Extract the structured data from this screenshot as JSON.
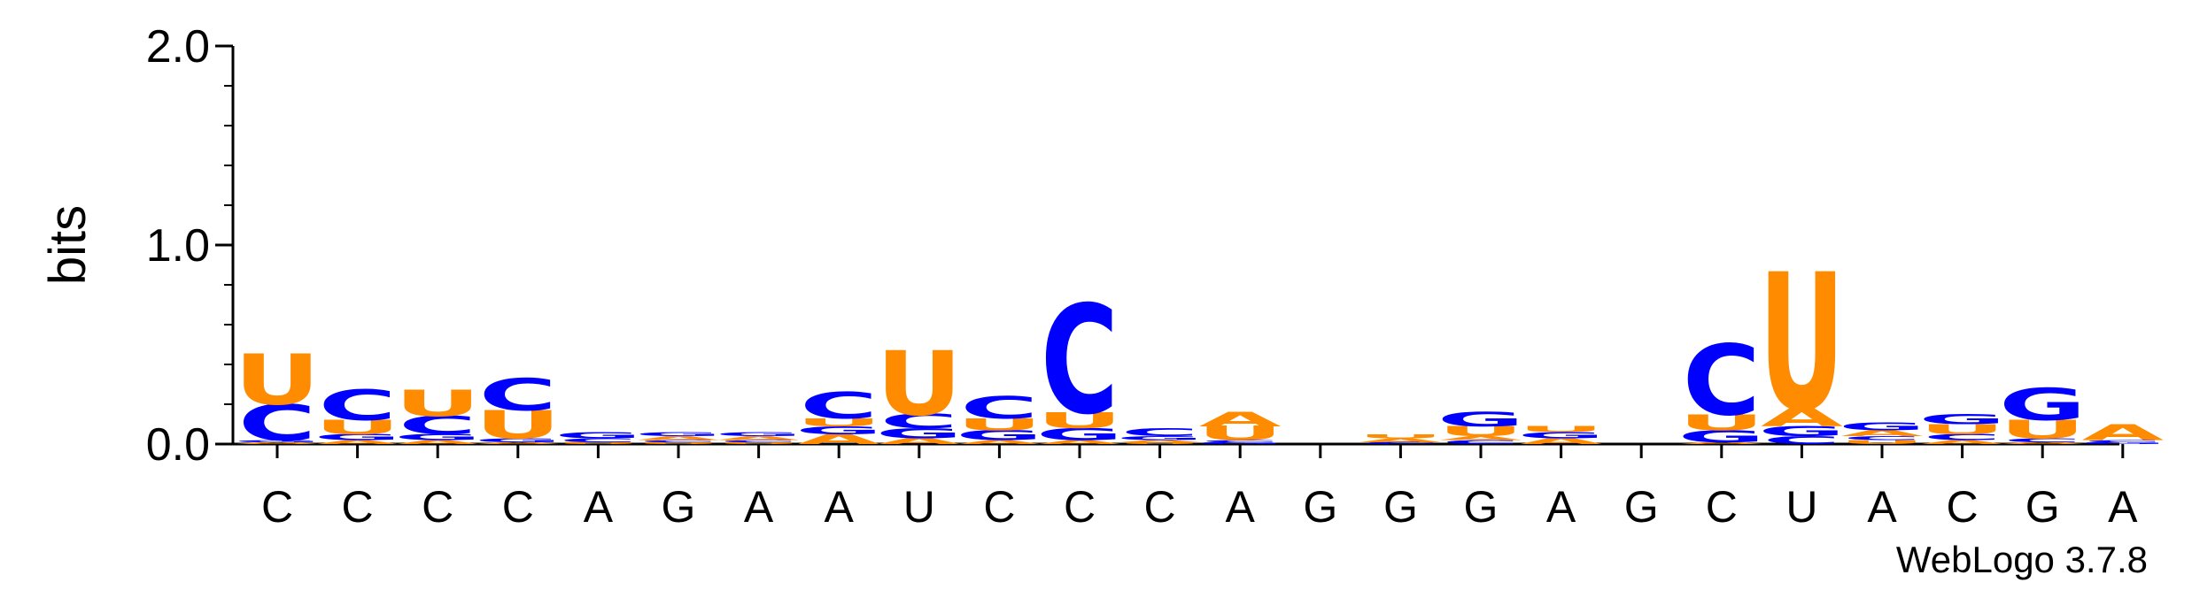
{
  "chart_data": {
    "type": "sequence-logo",
    "ylabel": "bits",
    "ylim": [
      0,
      2.0
    ],
    "yticks": [
      "0.0",
      "1.0",
      "2.0"
    ],
    "xticks": [
      "C",
      "C",
      "C",
      "C",
      "A",
      "G",
      "A",
      "A",
      "U",
      "C",
      "C",
      "C",
      "A",
      "G",
      "G",
      "G",
      "A",
      "G",
      "C",
      "U",
      "A",
      "C",
      "G",
      "A"
    ],
    "footer": "WebLogo 3.7.8",
    "colors": {
      "C": "#0000ff",
      "G": "#0000ff",
      "U": "#ff8c00",
      "A": "#ff8c00"
    },
    "positions": [
      [
        [
          "A",
          0.01
        ],
        [
          "G",
          0.01
        ],
        [
          "C",
          0.18
        ],
        [
          "U",
          0.25
        ]
      ],
      [
        [
          "A",
          0.02
        ],
        [
          "G",
          0.03
        ],
        [
          "U",
          0.07
        ],
        [
          "C",
          0.15
        ]
      ],
      [
        [
          "A",
          0.02
        ],
        [
          "G",
          0.03
        ],
        [
          "C",
          0.09
        ],
        [
          "U",
          0.13
        ]
      ],
      [
        [
          "A",
          0.01
        ],
        [
          "G",
          0.02
        ],
        [
          "U",
          0.14
        ],
        [
          "C",
          0.16
        ]
      ],
      [
        [
          "U",
          0.01
        ],
        [
          "C",
          0.02
        ],
        [
          "G",
          0.03
        ]
      ],
      [
        [
          "U",
          0.01
        ],
        [
          "C",
          0.01
        ],
        [
          "A",
          0.02
        ],
        [
          "G",
          0.02
        ]
      ],
      [
        [
          "U",
          0.01
        ],
        [
          "C",
          0.01
        ],
        [
          "A",
          0.02
        ],
        [
          "G",
          0.02
        ]
      ],
      [
        [
          "A",
          0.05
        ],
        [
          "G",
          0.04
        ],
        [
          "U",
          0.04
        ],
        [
          "C",
          0.13
        ]
      ],
      [
        [
          "A",
          0.03
        ],
        [
          "G",
          0.05
        ],
        [
          "C",
          0.07
        ],
        [
          "U",
          0.32
        ]
      ],
      [
        [
          "A",
          0.02
        ],
        [
          "G",
          0.05
        ],
        [
          "U",
          0.06
        ],
        [
          "C",
          0.11
        ]
      ],
      [
        [
          "A",
          0.02
        ],
        [
          "G",
          0.06
        ],
        [
          "U",
          0.08
        ],
        [
          "C",
          0.54
        ]
      ],
      [
        [
          "U",
          0.01
        ],
        [
          "A",
          0.01
        ],
        [
          "G",
          0.02
        ],
        [
          "C",
          0.04
        ]
      ],
      [
        [
          "G",
          0.01
        ],
        [
          "C",
          0.01
        ],
        [
          "U",
          0.07
        ],
        [
          "A",
          0.07
        ]
      ],
      [],
      [
        [
          "C",
          0.01
        ],
        [
          "A",
          0.02
        ],
        [
          "U",
          0.02
        ]
      ],
      [
        [
          "C",
          0.02
        ],
        [
          "A",
          0.02
        ],
        [
          "U",
          0.05
        ],
        [
          "G",
          0.07
        ]
      ],
      [
        [
          "A",
          0.03
        ],
        [
          "G",
          0.03
        ],
        [
          "U",
          0.03
        ]
      ],
      [],
      [
        [
          "A",
          0.01
        ],
        [
          "G",
          0.06
        ],
        [
          "U",
          0.08
        ],
        [
          "C",
          0.35
        ]
      ],
      [
        [
          "C",
          0.04
        ],
        [
          "G",
          0.05
        ],
        [
          "A",
          0.09
        ],
        [
          "U",
          0.68
        ]
      ],
      [
        [
          "U",
          0.02
        ],
        [
          "C",
          0.02
        ],
        [
          "A",
          0.03
        ],
        [
          "G",
          0.04
        ]
      ],
      [
        [
          "A",
          0.02
        ],
        [
          "C",
          0.03
        ],
        [
          "U",
          0.05
        ],
        [
          "G",
          0.05
        ]
      ],
      [
        [
          "A",
          0.01
        ],
        [
          "C",
          0.02
        ],
        [
          "U",
          0.09
        ],
        [
          "G",
          0.16
        ]
      ],
      [
        [
          "G",
          0.01
        ],
        [
          "C",
          0.01
        ],
        [
          "A",
          0.08
        ]
      ]
    ]
  }
}
